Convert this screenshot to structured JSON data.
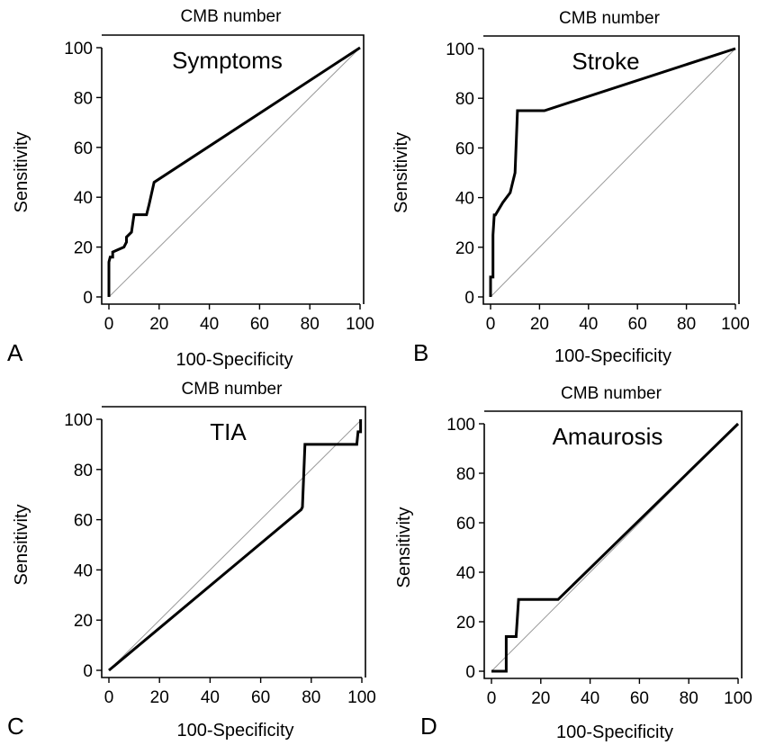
{
  "panels": [
    {
      "label": "A",
      "top_title": "CMB number",
      "chart_data": {
        "type": "line",
        "title": "Symptoms",
        "xlabel": "100-Specificity",
        "ylabel": "Sensitivity",
        "xlim": [
          0,
          100
        ],
        "ylim": [
          0,
          100
        ],
        "xticks": [
          0,
          20,
          40,
          60,
          80,
          100
        ],
        "yticks": [
          0,
          20,
          40,
          60,
          80,
          100
        ],
        "reference_line": [
          [
            0,
            0
          ],
          [
            100,
            100
          ]
        ],
        "series": [
          {
            "x": [
              0,
              0,
              0.5,
              1.5,
              1.5,
              6,
              7,
              7,
              9,
              10,
              11,
              15,
              16,
              18,
              100
            ],
            "y": [
              0,
              14,
              16,
              16,
              18,
              20,
              22,
              24,
              26,
              33,
              33,
              33,
              37,
              46,
              100
            ]
          }
        ]
      }
    },
    {
      "label": "B",
      "top_title": "CMB number",
      "chart_data": {
        "type": "line",
        "title": "Stroke",
        "xlabel": "100-Specificity",
        "ylabel": "Sensitivity",
        "xlim": [
          0,
          100
        ],
        "ylim": [
          0,
          100
        ],
        "xticks": [
          0,
          20,
          40,
          60,
          80,
          100
        ],
        "yticks": [
          0,
          20,
          40,
          60,
          80,
          100
        ],
        "reference_line": [
          [
            0,
            0
          ],
          [
            100,
            100
          ]
        ],
        "series": [
          {
            "x": [
              0,
              0,
              1,
              1,
              1.5,
              2,
              5,
              8,
              9,
              10,
              11,
              22,
              100
            ],
            "y": [
              0,
              8,
              8,
              25,
              33,
              33,
              38,
              42,
              46,
              50,
              75,
              75,
              100
            ]
          }
        ]
      }
    },
    {
      "label": "C",
      "top_title": "CMB number",
      "chart_data": {
        "type": "line",
        "title": "TIA",
        "xlabel": "100-Specificity",
        "ylabel": "Sensitivity",
        "xlim": [
          0,
          100
        ],
        "ylim": [
          0,
          100
        ],
        "xticks": [
          0,
          20,
          40,
          60,
          80,
          100
        ],
        "yticks": [
          0,
          20,
          40,
          60,
          80,
          100
        ],
        "reference_line": [
          [
            0,
            0
          ],
          [
            100,
            100
          ]
        ],
        "series": [
          {
            "x": [
              0,
              76,
              76.5,
              77.5,
              98,
              98.5,
              99.5,
              99.5
            ],
            "y": [
              0,
              64,
              65,
              90,
              90,
              95,
              95,
              100
            ]
          }
        ]
      }
    },
    {
      "label": "D",
      "top_title": "CMB number",
      "chart_data": {
        "type": "line",
        "title": "Amaurosis",
        "xlabel": "100-Specificity",
        "ylabel": "Sensitivity",
        "xlim": [
          0,
          100
        ],
        "ylim": [
          0,
          100
        ],
        "xticks": [
          0,
          20,
          40,
          60,
          80,
          100
        ],
        "yticks": [
          0,
          20,
          40,
          60,
          80,
          100
        ],
        "reference_line": [
          [
            0,
            0
          ],
          [
            100,
            100
          ]
        ],
        "series": [
          {
            "x": [
              0,
              6,
              6,
              10,
              11,
              27,
              100
            ],
            "y": [
              0,
              0,
              14,
              14,
              29,
              29,
              100
            ]
          }
        ]
      }
    }
  ]
}
